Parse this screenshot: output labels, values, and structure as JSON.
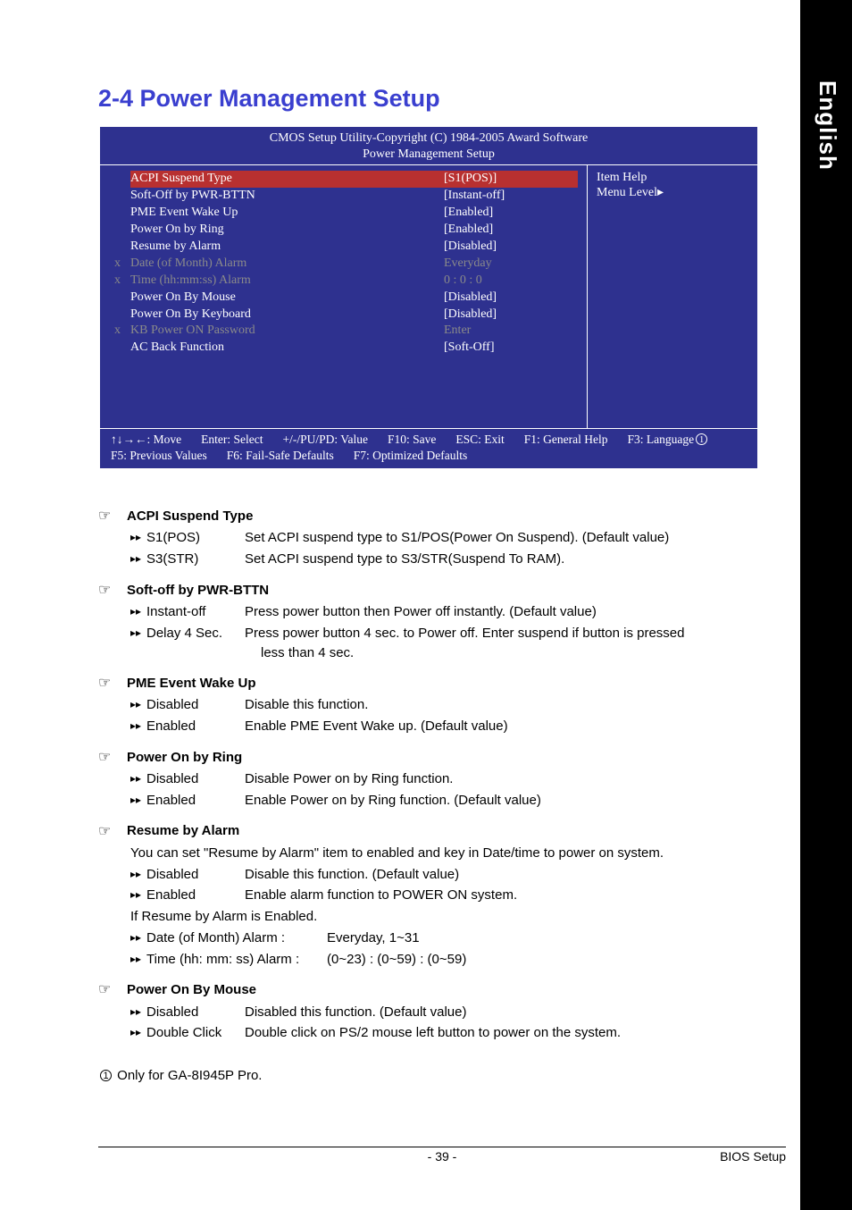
{
  "side_label": "English",
  "section_title": "2-4    Power Management Setup",
  "bios": {
    "header1": "CMOS Setup Utility-Copyright (C) 1984-2005 Award Software",
    "header2": "Power Management Setup",
    "right_title": "Item Help",
    "right_sub": "Menu Level▸",
    "rows": [
      {
        "prefix": "",
        "label": "ACPI Suspend Type",
        "value": "[S1(POS)]",
        "dim": false,
        "selected": true
      },
      {
        "prefix": "",
        "label": "Soft-Off by PWR-BTTN",
        "value": "[Instant-off]",
        "dim": false
      },
      {
        "prefix": "",
        "label": "PME Event Wake Up",
        "value": "[Enabled]",
        "dim": false
      },
      {
        "prefix": "",
        "label": "Power On by Ring",
        "value": "[Enabled]",
        "dim": false
      },
      {
        "prefix": "",
        "label": "Resume by Alarm",
        "value": "[Disabled]",
        "dim": false
      },
      {
        "prefix": "x",
        "label": "Date (of Month) Alarm",
        "value": "Everyday",
        "dim": true
      },
      {
        "prefix": "x",
        "label": "Time (hh:mm:ss) Alarm",
        "value": "0 : 0 : 0",
        "dim": true
      },
      {
        "prefix": "",
        "label": "Power On By Mouse",
        "value": "[Disabled]",
        "dim": false
      },
      {
        "prefix": "",
        "label": "Power On By Keyboard",
        "value": "[Disabled]",
        "dim": false
      },
      {
        "prefix": "x",
        "label": "KB Power ON Password",
        "value": "Enter",
        "dim": true
      },
      {
        "prefix": "",
        "label": "AC Back Function",
        "value": "[Soft-Off]",
        "dim": false
      }
    ],
    "footer": [
      "↑↓→←: Move",
      "Enter: Select",
      "+/-/PU/PD: Value",
      "F10: Save",
      "ESC: Exit",
      "F1: General Help",
      "F3: Language①",
      "F5: Previous Values",
      "F6: Fail-Safe Defaults",
      "F7: Optimized Defaults"
    ]
  },
  "options": [
    {
      "title": "ACPI Suspend Type",
      "items": [
        {
          "k": "S1(POS)",
          "d": "Set ACPI suspend type to S1/POS(Power On Suspend). (Default value)"
        },
        {
          "k": "S3(STR)",
          "d": "Set ACPI suspend type to S3/STR(Suspend To RAM)."
        }
      ]
    },
    {
      "title": "Soft-off by PWR-BTTN",
      "items": [
        {
          "k": "Instant-off",
          "d": "Press power button then Power off instantly. (Default value)"
        },
        {
          "k": "Delay 4 Sec.",
          "d": "Press power button 4 sec. to Power off. Enter suspend if button is pressed"
        }
      ],
      "extra_indent": "less than 4 sec."
    },
    {
      "title": "PME Event Wake Up",
      "items": [
        {
          "k": "Disabled",
          "d": "Disable this function."
        },
        {
          "k": "Enabled",
          "d": "Enable PME Event Wake up. (Default value)"
        }
      ]
    },
    {
      "title": "Power On by Ring",
      "items": [
        {
          "k": "Disabled",
          "d": "Disable Power on by Ring function."
        },
        {
          "k": "Enabled",
          "d": "Enable Power on by Ring function. (Default value)"
        }
      ]
    },
    {
      "title": "Resume by Alarm",
      "intro": "You can set \"Resume by Alarm\" item to enabled and key in Date/time to power on system.",
      "items": [
        {
          "k": "Disabled",
          "d": "Disable this function. (Default value)"
        },
        {
          "k": "Enabled",
          "d": "Enable alarm function to POWER ON system."
        }
      ],
      "after": "If Resume by Alarm is Enabled.",
      "wide": [
        {
          "k": "Date (of Month) Alarm :",
          "d": "Everyday, 1~31"
        },
        {
          "k": "Time (hh: mm: ss) Alarm :",
          "d": "(0~23) : (0~59) : (0~59)"
        }
      ]
    },
    {
      "title": "Power On By Mouse",
      "items": [
        {
          "k": "Disabled",
          "d": "Disabled this function. (Default value)"
        },
        {
          "k": "Double Click",
          "d": "Double click on PS/2 mouse left button to power on the system."
        }
      ]
    }
  ],
  "footnote_num": "1",
  "footnote_text": " Only for GA-8I945P Pro.",
  "page_num": "- 39 -",
  "page_label": "BIOS Setup"
}
